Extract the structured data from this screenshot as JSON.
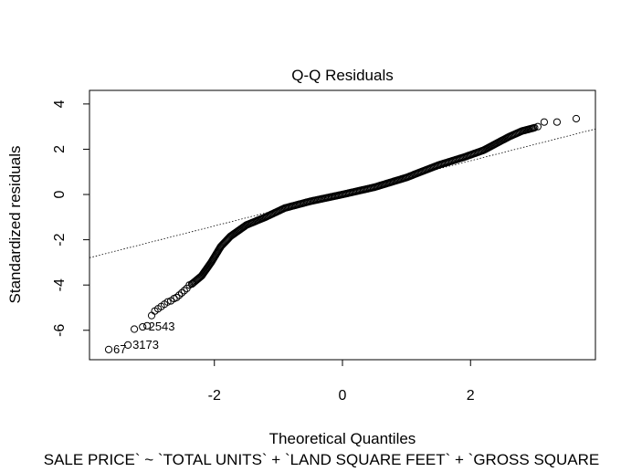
{
  "chart_data": {
    "type": "scatter",
    "title": "Q-Q Residuals",
    "xlabel": "Theoretical Quantiles",
    "ylabel": "Standardized residuals",
    "subtitle": "SALE PRICE` ~ `TOTAL UNITS` + `LAND SQUARE FEET` + `GROSS SQUARE",
    "xlim": [
      -3.95,
      3.95
    ],
    "ylim": [
      -7.3,
      4.6
    ],
    "x_ticks": [
      -2,
      0,
      2
    ],
    "y_ticks": [
      -6,
      -4,
      -2,
      0,
      2,
      4
    ],
    "x_tick_labels": [
      "-2",
      "0",
      "2"
    ],
    "y_tick_labels": [
      "-6",
      "-4",
      "-2",
      "0",
      "2",
      "4"
    ],
    "grid": false,
    "reference_line": {
      "style": "dotted",
      "intercept": 0.05,
      "slope": 0.72
    },
    "labeled_points": [
      {
        "label": "67",
        "x": -3.65,
        "y": -6.85
      },
      {
        "label": "3173",
        "x": -3.35,
        "y": -6.65
      },
      {
        "label": "2543",
        "x": -3.1,
        "y": -5.85
      }
    ],
    "tail_points": [
      [
        -3.65,
        -6.85
      ],
      [
        -3.35,
        -6.65
      ],
      [
        -3.25,
        -5.95
      ],
      [
        -3.12,
        -5.85
      ],
      [
        -3.05,
        -5.8
      ],
      [
        -2.98,
        -5.35
      ],
      [
        -2.93,
        -5.15
      ],
      [
        -2.88,
        -5.05
      ],
      [
        -2.83,
        -4.95
      ],
      [
        -2.78,
        -4.85
      ],
      [
        -2.73,
        -4.75
      ],
      [
        -2.68,
        -4.7
      ],
      [
        -2.63,
        -4.6
      ],
      [
        -2.59,
        -4.55
      ],
      [
        -2.55,
        -4.45
      ],
      [
        -2.51,
        -4.35
      ],
      [
        -2.47,
        -4.25
      ],
      [
        -2.43,
        -4.15
      ],
      [
        -2.39,
        -4.0
      ],
      [
        -2.35,
        -3.95
      ],
      [
        3.05,
        3.0
      ],
      [
        3.15,
        3.2
      ],
      [
        3.35,
        3.2
      ],
      [
        3.65,
        3.35
      ]
    ],
    "body_curve": [
      [
        -2.35,
        -3.95
      ],
      [
        -2.2,
        -3.6
      ],
      [
        -2.05,
        -3.0
      ],
      [
        -1.9,
        -2.3
      ],
      [
        -1.75,
        -1.85
      ],
      [
        -1.5,
        -1.35
      ],
      [
        -1.2,
        -1.0
      ],
      [
        -0.9,
        -0.6
      ],
      [
        -0.5,
        -0.3
      ],
      [
        0.0,
        0.0
      ],
      [
        0.5,
        0.32
      ],
      [
        1.0,
        0.75
      ],
      [
        1.5,
        1.3
      ],
      [
        1.9,
        1.65
      ],
      [
        2.2,
        1.95
      ],
      [
        2.4,
        2.25
      ],
      [
        2.6,
        2.55
      ],
      [
        2.8,
        2.8
      ],
      [
        3.0,
        2.95
      ]
    ]
  }
}
